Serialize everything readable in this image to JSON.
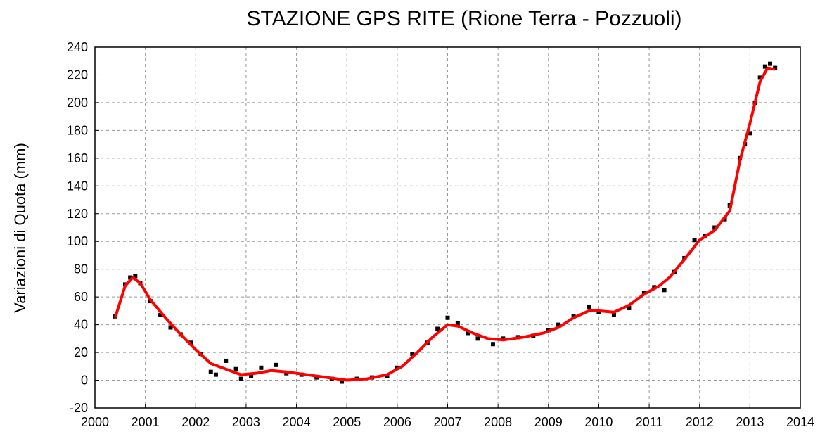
{
  "chart_data": {
    "type": "line",
    "title": "STAZIONE GPS RITE (Rione Terra - Pozzuoli)",
    "y_label": "Variazioni di Quota (mm)",
    "xlim": [
      2000,
      2014
    ],
    "xticks": [
      2000,
      2001,
      2002,
      2003,
      2004,
      2005,
      2006,
      2007,
      2008,
      2009,
      2010,
      2011,
      2012,
      2013,
      2014
    ],
    "ylim": [
      -20,
      240
    ],
    "yticks": [
      -20,
      0,
      20,
      40,
      60,
      80,
      100,
      120,
      140,
      160,
      180,
      200,
      220,
      240
    ],
    "grid": true,
    "series": [
      {
        "mode": "markers",
        "color": "#000000",
        "x": [
          2000.4,
          2000.6,
          2000.7,
          2000.8,
          2000.9,
          2001.1,
          2001.3,
          2001.5,
          2001.7,
          2001.9,
          2002.1,
          2002.3,
          2002.4,
          2002.6,
          2002.8,
          2002.9,
          2003.1,
          2003.3,
          2003.6,
          2003.8,
          2004.1,
          2004.4,
          2004.7,
          2004.9,
          2005.2,
          2005.5,
          2005.8,
          2006.0,
          2006.3,
          2006.6,
          2006.8,
          2007.0,
          2007.2,
          2007.4,
          2007.6,
          2007.9,
          2008.1,
          2008.4,
          2008.7,
          2009.0,
          2009.2,
          2009.5,
          2009.8,
          2010.0,
          2010.3,
          2010.6,
          2010.9,
          2011.1,
          2011.3,
          2011.5,
          2011.7,
          2011.9,
          2012.1,
          2012.3,
          2012.5,
          2012.6,
          2012.8,
          2012.9,
          2013.0,
          2013.1,
          2013.2,
          2013.3,
          2013.4,
          2013.5
        ],
        "values": [
          46,
          69,
          74,
          75,
          70,
          57,
          47,
          38,
          33,
          27,
          19,
          6,
          4,
          14,
          8,
          1,
          3,
          9,
          11,
          5,
          4,
          2,
          1,
          -1,
          1,
          2,
          3,
          9,
          19,
          27,
          37,
          45,
          41,
          34,
          30,
          26,
          30,
          31,
          32,
          36,
          40,
          46,
          53,
          49,
          47,
          52,
          63,
          67,
          65,
          78,
          88,
          101,
          104,
          110,
          116,
          126,
          160,
          170,
          178,
          200,
          218,
          226,
          228,
          225
        ]
      },
      {
        "mode": "line",
        "color": "#ff0000",
        "x": [
          2000.4,
          2000.6,
          2000.75,
          2000.9,
          2001.1,
          2001.4,
          2001.7,
          2002.0,
          2002.3,
          2002.6,
          2002.9,
          2003.2,
          2003.5,
          2003.8,
          2004.2,
          2004.6,
          2005.0,
          2005.4,
          2005.8,
          2006.1,
          2006.4,
          2006.7,
          2007.0,
          2007.2,
          2007.5,
          2007.8,
          2008.1,
          2008.5,
          2008.9,
          2009.2,
          2009.5,
          2009.8,
          2010.0,
          2010.3,
          2010.6,
          2010.9,
          2011.2,
          2011.4,
          2011.7,
          2012.0,
          2012.3,
          2012.6,
          2012.8,
          2013.0,
          2013.2,
          2013.35,
          2013.5
        ],
        "values": [
          45,
          68,
          74,
          70,
          58,
          45,
          33,
          22,
          12,
          8,
          4,
          5,
          7,
          6,
          4,
          2,
          0,
          1,
          4,
          10,
          20,
          31,
          40,
          39,
          34,
          30,
          29,
          31,
          34,
          38,
          45,
          50,
          50,
          49,
          54,
          62,
          68,
          74,
          87,
          101,
          108,
          122,
          158,
          185,
          215,
          225,
          224
        ]
      }
    ]
  }
}
